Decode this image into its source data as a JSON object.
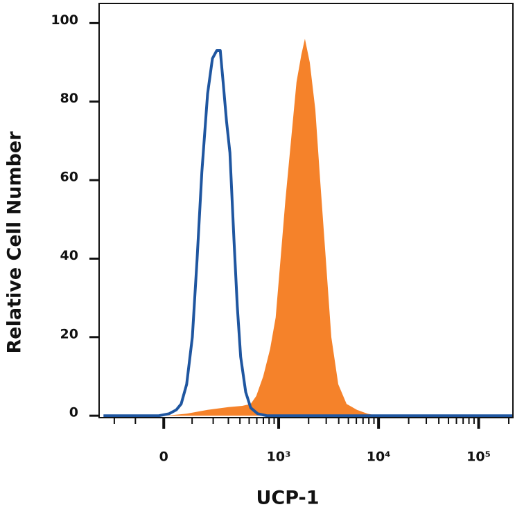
{
  "chart_data": {
    "type": "line",
    "x_label": "UCP-1",
    "y_label": "Relative Cell Number",
    "xscale": "arcsinh",
    "xlim": [
      -300,
      220000
    ],
    "ylim": [
      -0.5,
      105
    ],
    "xticks": [
      0,
      {
        "value": 1000,
        "label": "10³"
      },
      {
        "value": 10000,
        "label": "10⁴"
      },
      {
        "value": 100000,
        "label": "10⁵"
      }
    ],
    "xminorticks": [
      -200,
      -100,
      100,
      200,
      300,
      400,
      500,
      600,
      700,
      800,
      900,
      2000,
      3000,
      4000,
      5000,
      6000,
      7000,
      8000,
      9000,
      20000,
      30000,
      40000,
      50000,
      60000,
      70000,
      80000,
      90000,
      200000
    ],
    "yticks": [
      0,
      20,
      40,
      60,
      80,
      100
    ],
    "series": [
      {
        "color": "#f5822a",
        "filled": true,
        "x": [
          -268,
          7,
          79,
          170,
          301,
          423,
          519,
          592,
          697,
          820,
          933,
          1045,
          1170,
          1330,
          1513,
          1692,
          1835,
          2052,
          2334,
          2610,
          2967,
          3373,
          3960,
          4790,
          6090,
          7750,
          9840,
          220000
        ],
        "values": [
          0,
          0,
          0.5,
          1.5,
          2.2,
          2.5,
          3,
          5,
          10,
          17,
          25,
          40,
          55,
          70,
          85,
          92,
          96,
          90,
          78,
          60,
          40,
          20,
          8,
          3,
          1.5,
          0.5,
          0,
          0
        ]
      },
      {
        "color": "#1f56a0",
        "filled": false,
        "x": [
          -268,
          -16,
          18,
          42,
          59,
          79,
          101,
          121,
          142,
          170,
          196,
          221,
          243,
          262,
          286,
          312,
          345,
          375,
          407,
          460,
          519,
          612,
          757,
          220000
        ],
        "values": [
          0,
          0,
          0.5,
          1.5,
          3,
          8,
          20,
          40,
          62,
          82,
          91,
          93,
          93,
          85,
          75,
          67,
          45,
          28,
          15,
          6,
          2,
          0.5,
          0,
          0
        ]
      }
    ]
  }
}
